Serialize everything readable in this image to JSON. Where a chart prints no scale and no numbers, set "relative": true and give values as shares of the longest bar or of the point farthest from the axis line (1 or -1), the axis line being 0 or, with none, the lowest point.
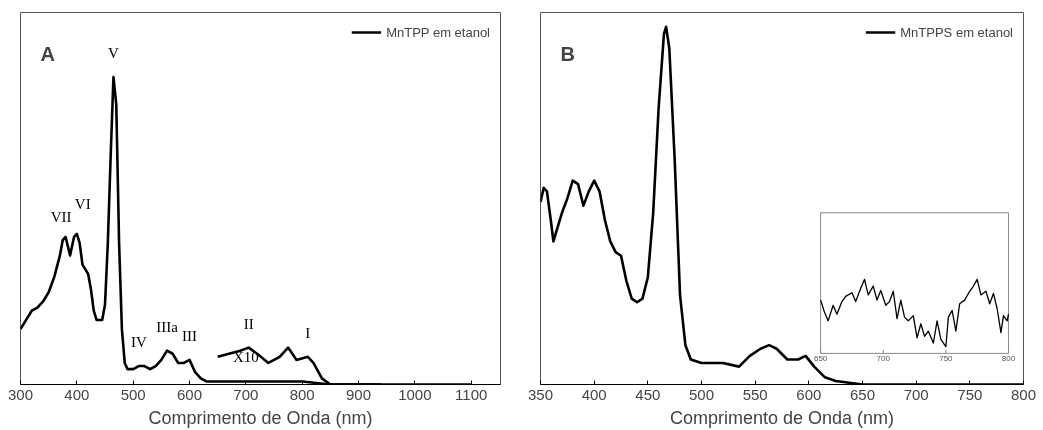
{
  "chart_data": [
    {
      "type": "line",
      "relative": true,
      "xlabel": "Comprimento de Onda (nm)",
      "xlim": [
        300,
        1152
      ],
      "xticks": [
        300,
        400,
        500,
        600,
        700,
        800,
        900,
        1000,
        1100
      ],
      "legend": "top right",
      "annotations": [
        "A",
        {
          "text": "VII",
          "x": 380,
          "y": 0.48
        },
        {
          "text": "VI",
          "x": 400,
          "y": 0.49
        },
        {
          "text": "V",
          "x": 465,
          "y": 1.0
        },
        {
          "text": "IV",
          "x": 510,
          "y": 0.06
        },
        {
          "text": "IIIa",
          "x": 560,
          "y": 0.11
        },
        {
          "text": "III",
          "x": 600,
          "y": 0.08
        },
        {
          "text": "II",
          "x": 705,
          "y": 0.12
        },
        {
          "text": "I",
          "x": 810,
          "y": 0.09
        },
        {
          "text": "X10",
          "x": 700,
          "y": 0.01
        }
      ],
      "series": [
        {
          "name": "MnTPP em etanol",
          "color": "#000000",
          "x": [
            300,
            310,
            320,
            330,
            340,
            350,
            360,
            370,
            375,
            380,
            388,
            395,
            400,
            405,
            410,
            420,
            425,
            430,
            435,
            445,
            450,
            455,
            460,
            465,
            470,
            475,
            480,
            485,
            490,
            500,
            510,
            520,
            530,
            540,
            550,
            560,
            570,
            580,
            590,
            600,
            610,
            620,
            630,
            650,
            700,
            720,
            770,
            800,
            850,
            1100
          ],
          "values": [
            0.18,
            0.21,
            0.24,
            0.25,
            0.27,
            0.3,
            0.35,
            0.42,
            0.47,
            0.48,
            0.42,
            0.48,
            0.49,
            0.46,
            0.39,
            0.36,
            0.31,
            0.24,
            0.21,
            0.21,
            0.26,
            0.46,
            0.74,
            1.0,
            0.91,
            0.46,
            0.18,
            0.07,
            0.05,
            0.05,
            0.06,
            0.06,
            0.05,
            0.06,
            0.08,
            0.11,
            0.1,
            0.07,
            0.07,
            0.08,
            0.04,
            0.02,
            0.01,
            0.01,
            0.01,
            0.01,
            0.01,
            0.01,
            0.0,
            0.0
          ]
        },
        {
          "color": "#000000",
          "x": [
            650,
            670,
            690,
            705,
            720,
            740,
            760,
            775,
            790,
            810,
            820,
            835,
            850,
            880,
            940
          ],
          "values": [
            0.09,
            0.1,
            0.11,
            0.12,
            0.1,
            0.07,
            0.09,
            0.12,
            0.08,
            0.09,
            0.07,
            0.02,
            0.0,
            0.0,
            0.0
          ]
        }
      ]
    },
    {
      "type": "line",
      "relative": true,
      "xlabel": "Comprimento de Onda (nm)",
      "xlim": [
        350,
        800
      ],
      "xticks": [
        350,
        400,
        450,
        500,
        550,
        600,
        650,
        700,
        750,
        800
      ],
      "legend": "top right",
      "annotations": [
        "B"
      ],
      "series": [
        {
          "name": "MnTPPS em etanol",
          "color": "#000000",
          "x": [
            350,
            353,
            356,
            360,
            362,
            365,
            370,
            375,
            380,
            385,
            390,
            395,
            400,
            405,
            410,
            415,
            420,
            425,
            430,
            435,
            440,
            445,
            450,
            455,
            460,
            465,
            467,
            470,
            475,
            480,
            485,
            490,
            500,
            510,
            520,
            535,
            545,
            555,
            563,
            570,
            580,
            590,
            597,
            605,
            615,
            625,
            650,
            700,
            750,
            780,
            800
          ],
          "values": [
            0.51,
            0.55,
            0.54,
            0.45,
            0.4,
            0.43,
            0.48,
            0.52,
            0.57,
            0.56,
            0.5,
            0.54,
            0.57,
            0.54,
            0.46,
            0.4,
            0.37,
            0.36,
            0.29,
            0.24,
            0.23,
            0.24,
            0.3,
            0.48,
            0.77,
            0.98,
            1.0,
            0.94,
            0.63,
            0.25,
            0.11,
            0.07,
            0.06,
            0.06,
            0.06,
            0.05,
            0.08,
            0.1,
            0.11,
            0.1,
            0.07,
            0.07,
            0.08,
            0.05,
            0.02,
            0.01,
            0.0,
            0.0,
            0.0,
            0.0,
            0.0
          ]
        }
      ]
    },
    {
      "type": "line",
      "relative": true,
      "xlim": [
        650,
        800
      ],
      "xticks": [
        650,
        700,
        750,
        800
      ],
      "series": [
        {
          "color": "#000000",
          "x": [
            650,
            653,
            656,
            660,
            663,
            667,
            670,
            675,
            678,
            682,
            685,
            688,
            692,
            695,
            698,
            702,
            705,
            708,
            711,
            714,
            717,
            720,
            724,
            727,
            730,
            733,
            736,
            740,
            743,
            746,
            750,
            752,
            755,
            758,
            761,
            765,
            768,
            772,
            775,
            778,
            782,
            785,
            788,
            791,
            794,
            796,
            799,
            800
          ],
          "values": [
            0.72,
            0.56,
            0.44,
            0.65,
            0.53,
            0.7,
            0.77,
            0.82,
            0.7,
            0.88,
            1.0,
            0.79,
            0.91,
            0.72,
            0.85,
            0.65,
            0.7,
            0.84,
            0.47,
            0.72,
            0.49,
            0.44,
            0.51,
            0.21,
            0.4,
            0.23,
            0.3,
            0.14,
            0.44,
            0.19,
            0.09,
            0.49,
            0.58,
            0.3,
            0.67,
            0.72,
            0.81,
            0.91,
            1.0,
            0.79,
            0.84,
            0.67,
            0.81,
            0.6,
            0.28,
            0.51,
            0.44,
            0.53
          ]
        }
      ]
    }
  ]
}
